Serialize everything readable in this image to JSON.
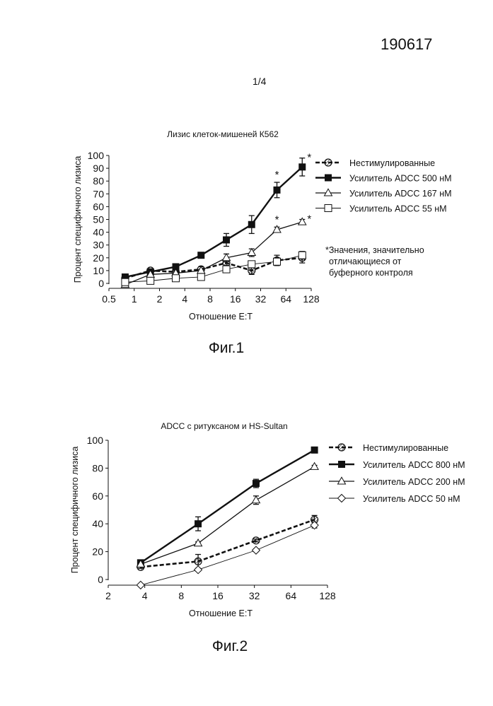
{
  "header": {
    "doc_number": "190617",
    "page": "1/4"
  },
  "figure1": {
    "caption": "Фиг.1",
    "note": [
      "*Значения, значительно",
      "отличающиеся от",
      "буферного контроля"
    ],
    "chart_data": {
      "type": "line",
      "title": "Лизис клеток-мишеней К562",
      "xlabel": "Отношение Е:Т",
      "ylabel": "Процент специфичного лизиса",
      "x_scale": "log2",
      "xlim": [
        0.5,
        128
      ],
      "ylim": [
        0,
        100
      ],
      "x_ticks": [
        "0.5",
        "1",
        "2",
        "4",
        "8",
        "16",
        "32",
        "64",
        "128"
      ],
      "y_ticks": [
        "0",
        "10",
        "20",
        "30",
        "40",
        "50",
        "60",
        "70",
        "80",
        "90",
        "100"
      ],
      "x": [
        0.78,
        1.56,
        3.125,
        6.25,
        12.5,
        25,
        50,
        100
      ],
      "series": [
        {
          "name": "Нестимулированные",
          "marker": "hatched-circle",
          "line": "dashed-bold",
          "values": [
            4,
            10,
            9,
            11,
            16,
            10,
            18,
            20
          ],
          "errors": [
            1,
            1,
            1,
            2,
            2,
            3,
            4,
            4
          ]
        },
        {
          "name": "Усилитель ADCC 500 нМ",
          "marker": "filled-square",
          "line": "solid-bold",
          "values": [
            5,
            9,
            13,
            22,
            34,
            46,
            73,
            91
          ],
          "errors": [
            1,
            1,
            1,
            1,
            5,
            7,
            6,
            7
          ],
          "significant": [
            false,
            false,
            false,
            false,
            false,
            false,
            true,
            true
          ]
        },
        {
          "name": "Усилитель ADCC 167 нМ",
          "marker": "open-triangle",
          "line": "solid",
          "values": [
            -1,
            7,
            8,
            10,
            20,
            24,
            42,
            48
          ],
          "errors": [
            1,
            1,
            1,
            1,
            3,
            3,
            2,
            2
          ],
          "significant": [
            false,
            false,
            false,
            false,
            false,
            false,
            true,
            true
          ]
        },
        {
          "name": "Усилитель ADCC 55 нМ",
          "marker": "open-square",
          "line": "solid-thin",
          "values": [
            1,
            2,
            4,
            5,
            11,
            15,
            17,
            22
          ],
          "errors": [
            1,
            1,
            1,
            1,
            2,
            2,
            3,
            3
          ]
        }
      ],
      "legend_position": "right"
    }
  },
  "figure2": {
    "caption": "Фиг.2",
    "chart_data": {
      "type": "line",
      "title": "ADCC с ритуксаном и HS-Sultan",
      "xlabel": "Отношение Е:Т",
      "ylabel": "Процент специфичного лизиса",
      "x_scale": "log2",
      "xlim": [
        2,
        128
      ],
      "ylim": [
        0,
        100
      ],
      "x_ticks": [
        "2",
        "4",
        "8",
        "16",
        "32",
        "64",
        "128"
      ],
      "y_ticks": [
        "0",
        "20",
        "40",
        "60",
        "80",
        "100"
      ],
      "x": [
        3.7,
        11,
        33,
        100
      ],
      "series": [
        {
          "name": "Нестимулированные",
          "marker": "hatched-circle",
          "line": "dashed-bold",
          "values": [
            9,
            13,
            28,
            43
          ],
          "errors": [
            1,
            5,
            1,
            3
          ]
        },
        {
          "name": "Усилитель ADCC 800 нМ",
          "marker": "filled-square",
          "line": "solid-bold",
          "values": [
            12,
            40,
            69,
            93
          ],
          "errors": [
            1,
            5,
            3,
            1
          ]
        },
        {
          "name": "Усилитель ADCC 200 нМ",
          "marker": "open-triangle",
          "line": "solid",
          "values": [
            11,
            26,
            57,
            81
          ],
          "errors": [
            1,
            1,
            3,
            1
          ]
        },
        {
          "name": "Усилитель ADCC 50 нМ",
          "marker": "open-diamond",
          "line": "solid-thin",
          "values": [
            -4,
            7,
            21,
            39
          ],
          "errors": [
            0,
            1,
            1,
            2
          ]
        }
      ],
      "legend_position": "right"
    }
  }
}
